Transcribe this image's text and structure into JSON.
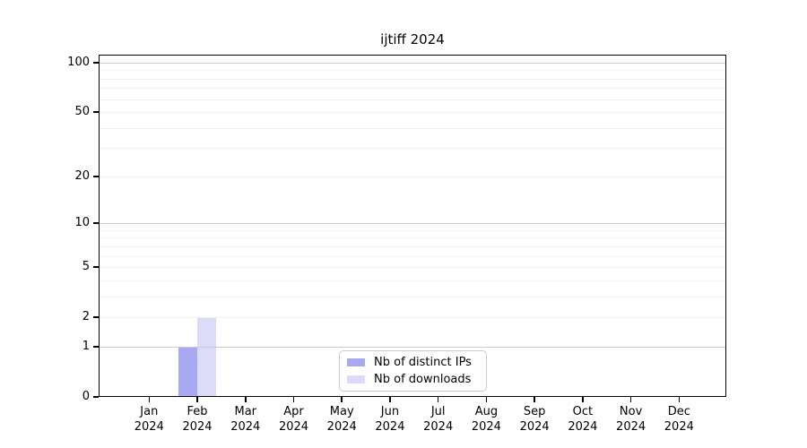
{
  "title": "ijtiff 2024",
  "chart_data": {
    "type": "bar",
    "title": "ijtiff 2024",
    "categories": [
      "Jan",
      "Feb",
      "Mar",
      "Apr",
      "May",
      "Jun",
      "Jul",
      "Aug",
      "Sep",
      "Oct",
      "Nov",
      "Dec"
    ],
    "year": "2024",
    "xlabel": "",
    "ylabel": "",
    "yscale": "log1p",
    "ylim": [
      0,
      112
    ],
    "ytick_values": [
      0,
      1,
      2,
      5,
      10,
      20,
      50,
      100
    ],
    "ytick_labels": [
      "0",
      "1",
      "2",
      "5",
      "10",
      "20",
      "50",
      "100"
    ],
    "grid": {
      "minor_values": [
        2,
        3,
        4,
        5,
        6,
        7,
        8,
        9,
        20,
        30,
        40,
        50,
        60,
        70,
        80,
        90
      ],
      "major_values": [
        1,
        10,
        100
      ],
      "minor_color": "#f0f0f0",
      "major_color": "#c9c9c9"
    },
    "series": [
      {
        "name": "Nb of distinct IPs",
        "color": "#a8a8f3",
        "values": [
          0,
          1,
          0,
          0,
          0,
          0,
          0,
          0,
          0,
          0,
          0,
          0
        ]
      },
      {
        "name": "Nb of downloads",
        "color": "#dcdcf8",
        "values": [
          0,
          2,
          0,
          0,
          0,
          0,
          0,
          0,
          0,
          0,
          0,
          0
        ]
      }
    ],
    "legend": {
      "position": "bottom-center"
    }
  }
}
